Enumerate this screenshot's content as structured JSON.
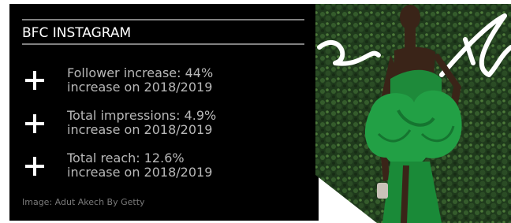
{
  "header": {
    "title": "BFC INSTAGRAM"
  },
  "stats": [
    {
      "label": "Follower increase: 44%",
      "detail": "increase on 2018/2019"
    },
    {
      "label": "Total impressions: 4.9%",
      "detail": "increase on 2018/2019"
    },
    {
      "label": "Total reach: 12.6%",
      "detail": "increase on 2018/2019"
    }
  ],
  "caption": "Image: Adut Akech By Getty"
}
